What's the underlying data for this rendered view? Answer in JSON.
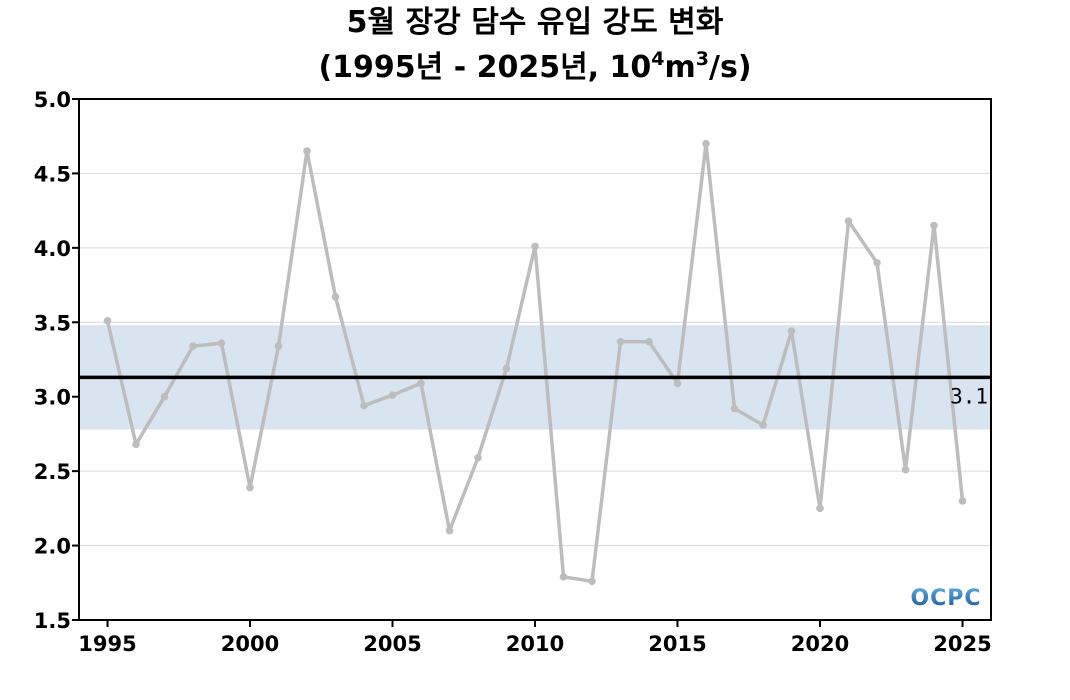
{
  "chart_data": {
    "type": "line",
    "title_line1": "5월 장강 담수 유입 강도 변화",
    "title_line2_prefix": "(1995년 - 2025년, 10",
    "title_line2_sup1": "4",
    "title_line2_mid": "m",
    "title_line2_sup2": "3",
    "title_line2_suffix": "/s)",
    "xlabel": "",
    "ylabel": "",
    "x": [
      1995,
      1996,
      1997,
      1998,
      1999,
      2000,
      2001,
      2002,
      2003,
      2004,
      2005,
      2006,
      2007,
      2008,
      2009,
      2010,
      2011,
      2012,
      2013,
      2014,
      2015,
      2016,
      2017,
      2018,
      2019,
      2020,
      2021,
      2022,
      2023,
      2024,
      2025
    ],
    "series": [
      {
        "values": [
          3.51,
          2.68,
          3.0,
          3.34,
          3.36,
          2.39,
          3.34,
          4.65,
          3.67,
          2.94,
          3.01,
          3.09,
          2.1,
          2.59,
          3.19,
          4.01,
          1.79,
          1.76,
          3.37,
          3.37,
          3.09,
          4.7,
          2.92,
          2.81,
          3.44,
          2.25,
          4.18,
          3.9,
          2.51,
          4.15,
          2.3
        ],
        "color": "#bdbdbd"
      }
    ],
    "mean": 3.13,
    "mean_label": "3.1",
    "band": [
      2.78,
      3.48
    ],
    "band_color": "#d8e4f0",
    "mean_color": "#000000",
    "xlim": [
      1994,
      2026
    ],
    "ylim": [
      1.5,
      5.0
    ],
    "xticks": [
      "1995",
      "2000",
      "2005",
      "2010",
      "2015",
      "2020",
      "2025"
    ],
    "xtick_values": [
      1995,
      2000,
      2005,
      2010,
      2015,
      2020,
      2025
    ],
    "yticks": [
      "1.5",
      "2.0",
      "2.5",
      "3.0",
      "3.5",
      "4.0",
      "4.5",
      "5.0"
    ],
    "ytick_values": [
      1.5,
      2.0,
      2.5,
      3.0,
      3.5,
      4.0,
      4.5,
      5.0
    ],
    "grid": true,
    "grid_color": "#d9d9d9"
  },
  "logo": {
    "text": "OCPC",
    "color_dark": "#1b4f9c",
    "color_light": "#5aaee0"
  }
}
